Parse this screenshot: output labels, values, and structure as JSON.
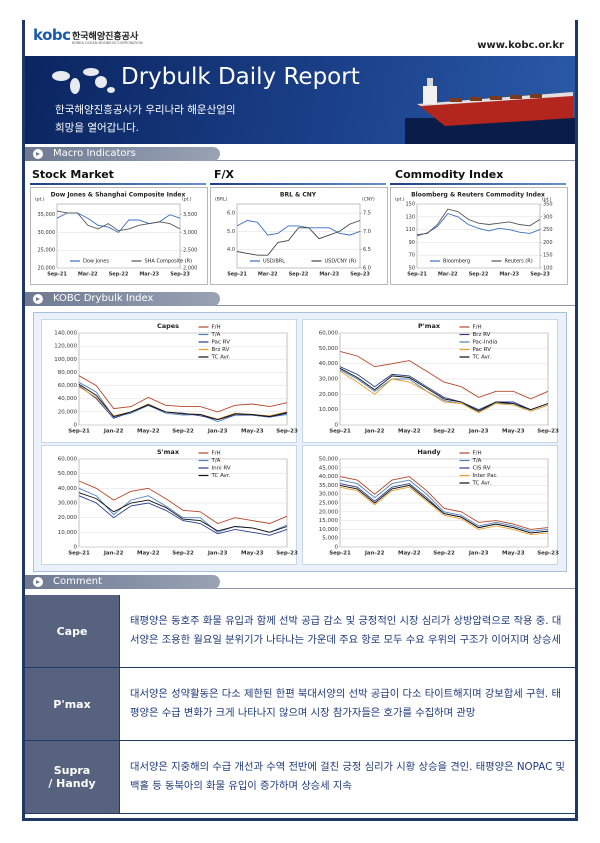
{
  "header": {
    "logo": "kobc",
    "logo_text": "한국해양진흥공사",
    "logo_sub": "KOREA OCEAN BUSINESS CORPORATION",
    "url": "www.kobc.or.kr"
  },
  "banner": {
    "title": "Drybulk Daily Report",
    "subtitle": [
      "한국해양진흥공사가 우리나라 해운산업의",
      "희망을 열어갑니다."
    ]
  },
  "sections": {
    "macro": "Macro Indicators",
    "kobc": "KOBC Drybulk Index",
    "comment": "Comment"
  },
  "macro_headings": [
    "Stock Market",
    "F/X",
    "Commodity Index"
  ],
  "chart_data": [
    {
      "type": "line",
      "title": "Dow Jones & Shanghai Composite Index",
      "y_label": "(pt.)",
      "y2_label": "(pt.)",
      "grid": true,
      "categories": [
        "Sep-21",
        null,
        null,
        "Mar-22",
        null,
        null,
        "Sep-22",
        null,
        null,
        "Mar-23",
        null,
        null,
        "Sep-23"
      ],
      "ylim": [
        20000,
        38000
      ],
      "yticks": [
        {
          "value": 20000,
          "label": "20,000"
        },
        {
          "value": 25000,
          "label": "25,000"
        },
        {
          "value": 30000,
          "label": "30,000"
        },
        {
          "value": 35000,
          "label": "35,000"
        }
      ],
      "y2lim": [
        2000,
        3800
      ],
      "y2ticks": [
        {
          "value": 2000,
          "label": "2,000"
        },
        {
          "value": 2500,
          "label": "2,500"
        },
        {
          "value": 3000,
          "label": "3,000"
        },
        {
          "value": 3500,
          "label": "3,500"
        }
      ],
      "series": [
        {
          "name": "Dow Jones",
          "color": "#3b6fc4",
          "values": [
            34000,
            35500,
            35500,
            34000,
            32000,
            31500,
            30000,
            33500,
            33500,
            32500,
            33000,
            35000,
            34000
          ]
        },
        {
          "name": "SHA Composite (R)",
          "color": "#555555",
          "axis": "y2",
          "values": [
            3600,
            3550,
            3550,
            3200,
            3100,
            3250,
            3050,
            3100,
            3200,
            3250,
            3300,
            3250,
            3100
          ]
        }
      ]
    },
    {
      "type": "line",
      "title": "BRL & CNY",
      "y_label": "(BRL)",
      "y2_label": "(CNY)",
      "grid": true,
      "categories": [
        "Sep-21",
        null,
        null,
        "Mar-22",
        null,
        null,
        "Sep-22",
        null,
        null,
        "Mar-23",
        null,
        null,
        "Sep-23"
      ],
      "ylim": [
        3,
        6.5
      ],
      "yticks": [
        {
          "value": 4,
          "label": "4.0"
        },
        {
          "value": 5,
          "label": "5.0"
        },
        {
          "value": 6,
          "label": "6.0"
        }
      ],
      "y2lim": [
        6,
        7.75
      ],
      "y2ticks": [
        {
          "value": 6,
          "label": "6.0"
        },
        6.5,
        {
          "value": 7,
          "label": "7.0"
        },
        7.5
      ],
      "series": [
        {
          "name": "USD/BRL",
          "color": "#3b6fc4",
          "values": [
            5.3,
            5.6,
            5.5,
            4.8,
            4.9,
            5.3,
            5.3,
            5.2,
            5.2,
            5.2,
            4.9,
            4.8,
            5.0
          ]
        },
        {
          "name": "USD/CNY (R)",
          "color": "#444444",
          "axis": "y2",
          "values": [
            6.45,
            6.4,
            6.35,
            6.35,
            6.7,
            6.75,
            7.1,
            7.1,
            6.8,
            6.9,
            7.0,
            7.2,
            7.3
          ]
        }
      ]
    },
    {
      "type": "line",
      "title": "Bloomberg & Reuters Commodity Index",
      "y_label": "(pt.)",
      "y2_label": "(pt.)",
      "grid": true,
      "categories": [
        "Sep-21",
        null,
        null,
        "Mar-22",
        null,
        null,
        "Sep-22",
        null,
        null,
        "Mar-23",
        null,
        null,
        "Sep-23"
      ],
      "ylim": [
        50,
        150
      ],
      "yticks": [
        50,
        70,
        90,
        110,
        130,
        150
      ],
      "y2lim": [
        100,
        350
      ],
      "y2ticks": [
        100,
        150,
        200,
        250,
        300,
        350
      ],
      "series": [
        {
          "name": "Bloomberg",
          "color": "#3b6fc4",
          "values": [
            100,
            105,
            115,
            135,
            130,
            118,
            112,
            108,
            112,
            110,
            106,
            104,
            110
          ]
        },
        {
          "name": "Reuters (R)",
          "color": "#555555",
          "axis": "y2",
          "values": [
            230,
            235,
            270,
            330,
            320,
            290,
            275,
            270,
            275,
            280,
            270,
            265,
            290
          ]
        }
      ]
    },
    {
      "type": "line",
      "title": "Capes",
      "grid": true,
      "categories": [
        "Sep-21",
        null,
        "Jan-22",
        null,
        "May-22",
        null,
        "Sep-22",
        null,
        "Jan-23",
        null,
        "May-23",
        null,
        "Sep-23"
      ],
      "ylim": [
        0,
        140000
      ],
      "yticks": [
        0,
        {
          "value": 20000,
          "label": "20,000"
        },
        {
          "value": 40000,
          "label": "40,000"
        },
        {
          "value": 60000,
          "label": "60,000"
        },
        {
          "value": 80000,
          "label": "80,000"
        },
        {
          "value": 100000,
          "label": "100,000"
        },
        {
          "value": 120000,
          "label": "120,000"
        },
        {
          "value": 140000,
          "label": "140,000"
        }
      ],
      "series": [
        {
          "name": "F/H",
          "color": "#b5472b",
          "values": [
            75000,
            60000,
            25000,
            28000,
            42000,
            30000,
            28000,
            28000,
            20000,
            30000,
            32000,
            28000,
            34000
          ]
        },
        {
          "name": "T/A",
          "color": "#4f81bd",
          "values": [
            65000,
            50000,
            12000,
            18000,
            30000,
            18000,
            15000,
            16000,
            5000,
            15000,
            15000,
            12000,
            16000
          ]
        },
        {
          "name": "Pac RV",
          "color": "#2c3e8c",
          "values": [
            60000,
            40000,
            10000,
            20000,
            30000,
            20000,
            18000,
            14000,
            8000,
            15000,
            15000,
            12000,
            18000
          ]
        },
        {
          "name": "Brz RV",
          "color": "#e8a030",
          "values": [
            58000,
            42000,
            14000,
            20000,
            32000,
            20000,
            17000,
            16000,
            9000,
            18000,
            16000,
            14000,
            20000
          ]
        },
        {
          "name": "TC Avr.",
          "color": "#111111",
          "values": [
            62000,
            45000,
            13000,
            20000,
            31000,
            20000,
            17000,
            16000,
            8000,
            17000,
            16000,
            13000,
            19000
          ]
        }
      ]
    },
    {
      "type": "line",
      "title": "P'max",
      "grid": true,
      "categories": [
        "Sep-21",
        null,
        "Jan-22",
        null,
        "May-22",
        null,
        "Sep-22",
        null,
        "Jan-23",
        null,
        "May-23",
        null,
        "Sep-23"
      ],
      "ylim": [
        0,
        60000
      ],
      "yticks": [
        0,
        {
          "value": 10000,
          "label": "10,000"
        },
        {
          "value": 20000,
          "label": "20,000"
        },
        {
          "value": 30000,
          "label": "30,000"
        },
        {
          "value": 40000,
          "label": "40,000"
        },
        {
          "value": 50000,
          "label": "50,000"
        },
        {
          "value": 60000,
          "label": "60,000"
        }
      ],
      "series": [
        {
          "name": "F/H",
          "color": "#b5472b",
          "values": [
            48000,
            45000,
            38000,
            40000,
            42000,
            35000,
            28000,
            25000,
            18000,
            22000,
            22000,
            17000,
            22000
          ]
        },
        {
          "name": "Brz RV",
          "color": "#2c3e8c",
          "values": [
            38000,
            33000,
            25000,
            33000,
            32000,
            25000,
            18000,
            15000,
            10000,
            15000,
            15000,
            10000,
            14000
          ]
        },
        {
          "name": "Pac-India",
          "color": "#4f81bd",
          "values": [
            36000,
            30000,
            22000,
            30000,
            30000,
            22000,
            16000,
            14000,
            9000,
            14000,
            14000,
            9000,
            13000
          ]
        },
        {
          "name": "Pac RV",
          "color": "#e8a030",
          "values": [
            35000,
            28000,
            20000,
            30000,
            28000,
            22000,
            15000,
            14000,
            8000,
            14000,
            13000,
            9000,
            13000
          ]
        },
        {
          "name": "TC Avr.",
          "color": "#111111",
          "values": [
            37000,
            31000,
            23000,
            32000,
            31000,
            24000,
            17000,
            15000,
            9000,
            15000,
            14000,
            10000,
            14000
          ]
        }
      ]
    },
    {
      "type": "line",
      "title": "S'max",
      "grid": true,
      "categories": [
        "Sep-21",
        null,
        "Jan-22",
        null,
        "May-22",
        null,
        "Sep-22",
        null,
        "Jan-23",
        null,
        "May-23",
        null,
        "Sep-23"
      ],
      "ylim": [
        0,
        60000
      ],
      "yticks": [
        0,
        {
          "value": 10000,
          "label": "10,000"
        },
        {
          "value": 20000,
          "label": "20,000"
        },
        {
          "value": 30000,
          "label": "30,000"
        },
        {
          "value": 40000,
          "label": "40,000"
        },
        {
          "value": 50000,
          "label": "50,000"
        },
        {
          "value": 60000,
          "label": "60,000"
        }
      ],
      "series": [
        {
          "name": "F/H",
          "color": "#b5472b",
          "values": [
            45000,
            40000,
            32000,
            38000,
            40000,
            33000,
            25000,
            24000,
            16000,
            20000,
            18000,
            16000,
            21000
          ]
        },
        {
          "name": "T/A",
          "color": "#4f81bd",
          "values": [
            40000,
            35000,
            22000,
            32000,
            35000,
            28000,
            20000,
            20000,
            10000,
            14000,
            13000,
            10000,
            15000
          ]
        },
        {
          "name": "Inni RV",
          "color": "#2c3e8c",
          "values": [
            35000,
            30000,
            20000,
            28000,
            30000,
            25000,
            18000,
            16000,
            9000,
            12000,
            10000,
            8000,
            12000
          ]
        },
        {
          "name": "TC Avr.",
          "color": "#111111",
          "values": [
            37000,
            33000,
            24000,
            30000,
            32000,
            27000,
            19000,
            18000,
            11000,
            14000,
            13000,
            10000,
            14000
          ]
        }
      ]
    },
    {
      "type": "line",
      "title": "Handy",
      "grid": true,
      "categories": [
        "Sep-21",
        null,
        "Jan-22",
        null,
        "May-22",
        null,
        "Sep-22",
        null,
        "Jan-23",
        null,
        "May-23",
        null,
        "Sep-23"
      ],
      "ylim": [
        0,
        50000
      ],
      "yticks": [
        0,
        {
          "value": 5000,
          "label": "5,000"
        },
        {
          "value": 10000,
          "label": "10,000"
        },
        {
          "value": 15000,
          "label": "15,000"
        },
        {
          "value": 20000,
          "label": "20,000"
        },
        {
          "value": 25000,
          "label": "25,000"
        },
        {
          "value": 30000,
          "label": "30,000"
        },
        {
          "value": 35000,
          "label": "35,000"
        },
        {
          "value": 40000,
          "label": "40,000"
        },
        {
          "value": 45000,
          "label": "45,000"
        },
        {
          "value": 50000,
          "label": "50,000"
        }
      ],
      "series": [
        {
          "name": "F/H",
          "color": "#b5472b",
          "values": [
            40000,
            38000,
            30000,
            38000,
            40000,
            32000,
            22000,
            20000,
            14000,
            15000,
            13000,
            10000,
            11000
          ]
        },
        {
          "name": "T/A",
          "color": "#4f81bd",
          "values": [
            38000,
            36000,
            28000,
            36000,
            38000,
            30000,
            20000,
            18000,
            12000,
            14000,
            12000,
            9000,
            10000
          ]
        },
        {
          "name": "CIS RV",
          "color": "#2c3e8c",
          "values": [
            36000,
            34000,
            26000,
            34000,
            36000,
            28000,
            19000,
            17000,
            11000,
            13000,
            11000,
            8000,
            9000
          ]
        },
        {
          "name": "Inter Pac",
          "color": "#e8a030",
          "values": [
            34000,
            32000,
            24000,
            32000,
            34000,
            26000,
            18000,
            16000,
            10000,
            12000,
            10000,
            7000,
            8000
          ]
        },
        {
          "name": "TC Avr.",
          "color": "#111111",
          "values": [
            35000,
            33000,
            25000,
            33000,
            35000,
            27000,
            19000,
            17000,
            11000,
            13000,
            11000,
            8000,
            9000
          ]
        }
      ]
    }
  ],
  "comments": [
    {
      "label": [
        "Cape"
      ],
      "text": "태평양은 동호주 화물 유입과 함께 선박 공급 감소 및 긍정적인 시장 심리가 상방압력으로 작용 중. 대서양은 조용한 월요일 분위기가 나타나는 가운데 주요 항로 모두 수요 우위의 구조가 이어지며 상승세"
    },
    {
      "label": [
        "P'max"
      ],
      "text": "대서양은 성약활동은 다소 제한된 한편 북대서양의 선박 공급이 다소 타이트해지며 강보합세 구현. 태평양은 수급 변화가 크게 나타나지 않으며 시장 참가자들은 호가를 수집하며 관망"
    },
    {
      "label": [
        "Supra",
        "/ Handy"
      ],
      "text": "대서양은 지중해의 수급 개선과 수역 전반에 걸친 긍정 심리가 시황 상승을 견인. 태평양은 NOPAC 및 백홀 등 동북아의 화물 유입이 증가하며 상승세 지속"
    }
  ]
}
